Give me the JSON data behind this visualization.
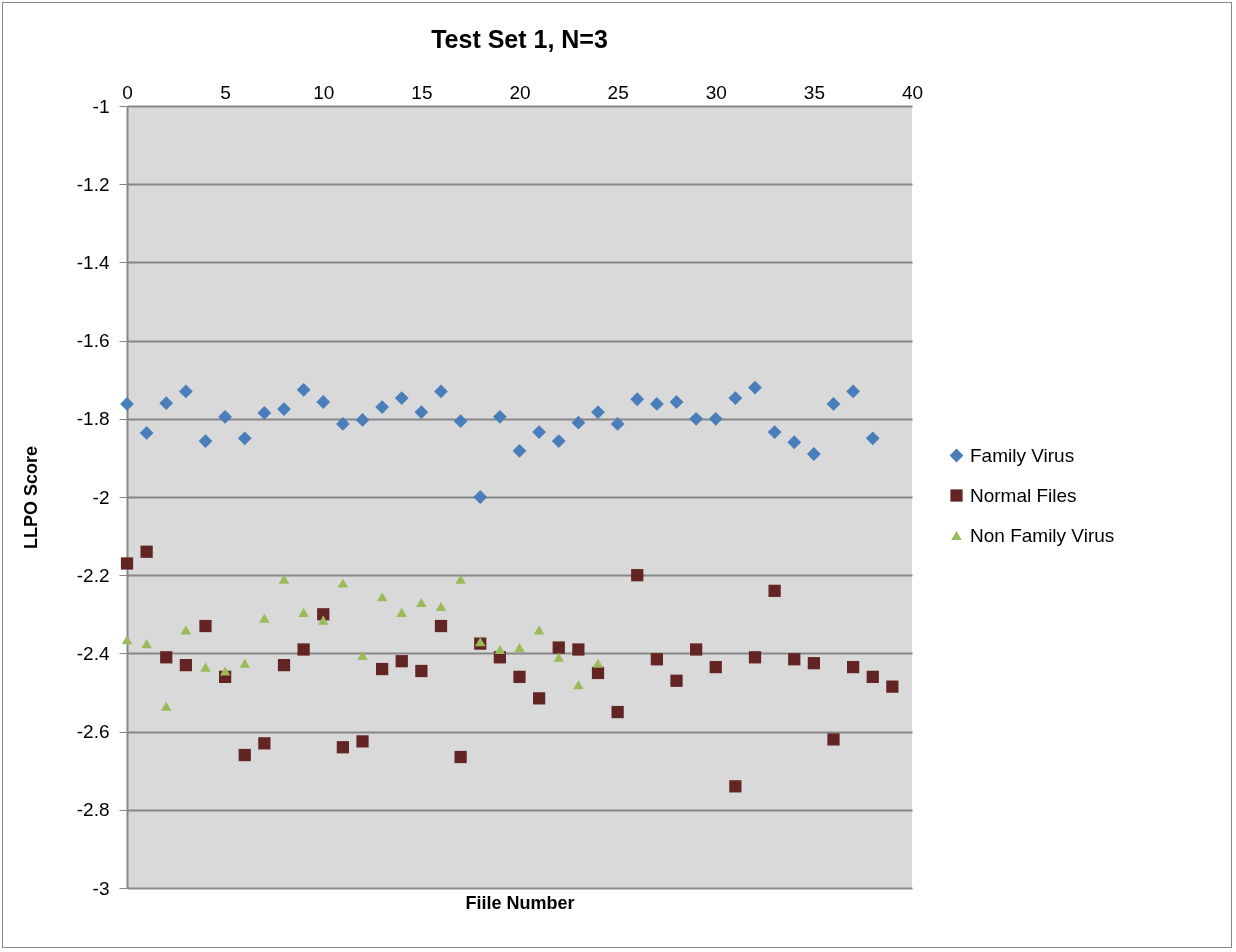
{
  "chart_data": {
    "type": "scatter",
    "title": "Test Set 1, N=3",
    "xlabel": "Fiile Number",
    "ylabel": "LLPO Score",
    "xlim": [
      0,
      40
    ],
    "xticks": [
      0,
      5,
      10,
      15,
      20,
      25,
      30,
      35,
      40
    ],
    "ylim": [
      -3,
      -1
    ],
    "yticks": [
      -3,
      -2.8,
      -2.6,
      -2.4,
      -2.2,
      -2,
      -1.8,
      -1.6,
      -1.4,
      -1.2,
      -1
    ],
    "grid": "y",
    "legend": "right",
    "series": [
      {
        "name": "Family Virus",
        "color": "#4a7ebb",
        "marker": "diamond",
        "x": [
          0,
          1,
          2,
          3,
          4,
          5,
          6,
          7,
          8,
          9,
          10,
          11,
          12,
          13,
          14,
          15,
          16,
          17,
          18,
          19,
          20,
          21,
          22,
          23,
          24,
          25,
          26,
          27,
          28,
          29,
          30,
          31,
          32,
          33,
          34,
          35,
          36,
          37,
          38
        ],
        "values": [
          -1.762,
          -1.836,
          -1.76,
          -1.73,
          -1.857,
          -1.795,
          -1.85,
          -1.785,
          -1.775,
          -1.726,
          -1.757,
          -1.813,
          -1.803,
          -1.77,
          -1.747,
          -1.783,
          -1.73,
          -1.806,
          -2.0,
          -1.795,
          -1.882,
          -1.834,
          -1.857,
          -1.81,
          -1.783,
          -1.813,
          -1.75,
          -1.762,
          -1.757,
          -1.8,
          -1.8,
          -1.747,
          -1.72,
          -1.834,
          -1.86,
          -1.89,
          -1.762,
          -1.73,
          -1.85
        ]
      },
      {
        "name": "Normal Files",
        "color": "#632523",
        "marker": "square",
        "x": [
          0,
          1,
          2,
          3,
          4,
          5,
          6,
          7,
          8,
          9,
          10,
          11,
          12,
          13,
          14,
          15,
          16,
          17,
          18,
          19,
          20,
          21,
          22,
          23,
          24,
          25,
          26,
          27,
          28,
          29,
          30,
          31,
          32,
          33,
          34,
          35,
          36,
          37,
          38,
          39
        ],
        "values": [
          -2.17,
          -2.14,
          -2.41,
          -2.43,
          -2.33,
          -2.46,
          -2.66,
          -2.63,
          -2.43,
          -2.39,
          -2.3,
          -2.64,
          -2.625,
          -2.44,
          -2.42,
          -2.445,
          -2.33,
          -2.665,
          -2.375,
          -2.41,
          -2.46,
          -2.515,
          -2.385,
          -2.39,
          -2.45,
          -2.55,
          -2.2,
          -2.415,
          -2.47,
          -2.39,
          -2.435,
          -2.74,
          -2.41,
          -2.24,
          -2.415,
          -2.425,
          -2.62,
          -2.435,
          -2.46,
          -2.485
        ]
      },
      {
        "name": "Non Family Virus",
        "color": "#9bbb59",
        "marker": "triangle",
        "x": [
          0,
          1,
          2,
          3,
          4,
          5,
          6,
          7,
          8,
          9,
          10,
          11,
          12,
          13,
          14,
          15,
          16,
          17,
          18,
          19,
          20,
          21,
          22,
          23,
          24
        ],
        "values": [
          -2.365,
          -2.375,
          -2.535,
          -2.34,
          -2.435,
          -2.445,
          -2.425,
          -2.31,
          -2.21,
          -2.295,
          -2.315,
          -2.22,
          -2.405,
          -2.255,
          -2.295,
          -2.27,
          -2.28,
          -2.21,
          -2.37,
          -2.39,
          -2.385,
          -2.34,
          -2.41,
          -2.48,
          -2.425
        ]
      }
    ]
  }
}
